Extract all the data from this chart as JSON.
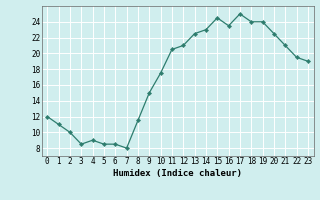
{
  "xlabel": "Humidex (Indice chaleur)",
  "x": [
    0,
    1,
    2,
    3,
    4,
    5,
    6,
    7,
    8,
    9,
    10,
    11,
    12,
    13,
    14,
    15,
    16,
    17,
    18,
    19,
    20,
    21,
    22,
    23
  ],
  "y": [
    12,
    11,
    10,
    8.5,
    9,
    8.5,
    8.5,
    8,
    11.5,
    15,
    17.5,
    20.5,
    21,
    22.5,
    23,
    24.5,
    23.5,
    25,
    24,
    24,
    22.5,
    21,
    19.5,
    19.0
  ],
  "line_color": "#2e7d6e",
  "marker": "D",
  "marker_size": 2.2,
  "bg_color": "#d0eeee",
  "grid_color": "#ffffff",
  "ylim": [
    7,
    26
  ],
  "yticks": [
    8,
    10,
    12,
    14,
    16,
    18,
    20,
    22,
    24
  ],
  "xticks": [
    0,
    1,
    2,
    3,
    4,
    5,
    6,
    7,
    8,
    9,
    10,
    11,
    12,
    13,
    14,
    15,
    16,
    17,
    18,
    19,
    20,
    21,
    22,
    23
  ],
  "xlabel_fontsize": 6.5,
  "tick_fontsize": 5.5,
  "ylabel_fontsize": 6.0
}
